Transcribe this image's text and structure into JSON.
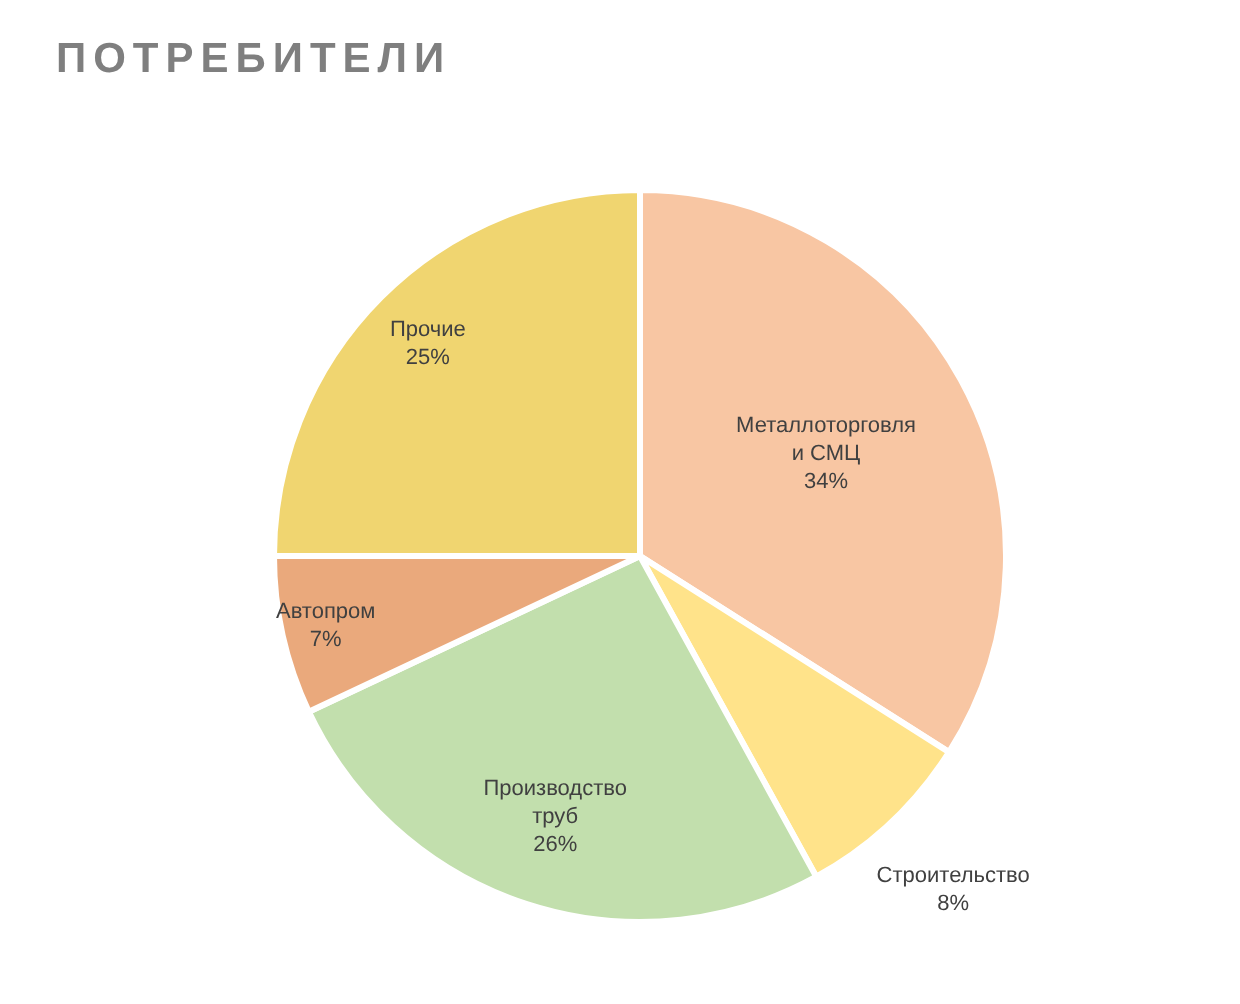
{
  "chart_data": {
    "type": "pie",
    "title": "ПОТРЕБИТЕЛИ",
    "categories": [
      "Металлоторговля и СМЦ",
      "Строительство",
      "Производство труб",
      "Автопром",
      "Прочие"
    ],
    "values": [
      34,
      8,
      26,
      7,
      25
    ],
    "colors": [
      "#f8c6a3",
      "#ffe38a",
      "#c2dfad",
      "#eaa97c",
      "#f0d570"
    ],
    "value_labels": [
      "34%",
      "8%",
      "26%",
      "7%",
      "25%"
    ],
    "legend": false
  }
}
